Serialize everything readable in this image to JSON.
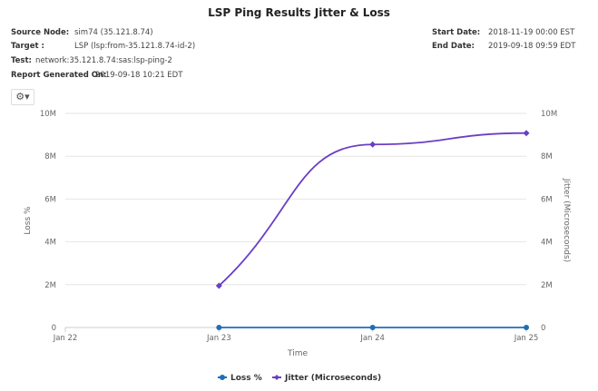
{
  "header": {
    "title": "LSP Ping Results Jitter & Loss",
    "source_node_label": "Source Node:",
    "source_node": "sim74 (35.121.8.74)",
    "target_label": "Target :",
    "target": "LSP (lsp:from-35.121.8.74-id-2)",
    "test_label": "Test:",
    "test": "network:35.121.8.74:sas:lsp-ping-2",
    "generated_label": "Report Generated On:",
    "generated": "2019-09-18 10:21 EDT",
    "start_label": "Start Date:",
    "start": "2018-11-19 00:00 EST",
    "end_label": "End Date:",
    "end": "2019-09-18 09:59 EDT"
  },
  "toolbar": {
    "settings_icon": "gear-icon",
    "settings_glyph": "⚙▾"
  },
  "chart_data": {
    "type": "line",
    "xlabel": "Time",
    "ylabel_left": "Loss %",
    "ylabel_right": "Jitter (Microseconds)",
    "x_ticks": [
      "Jan 22",
      "Jan 23",
      "Jan 24",
      "Jan 25"
    ],
    "y_ticks": [
      "0",
      "2M",
      "4M",
      "6M",
      "8M",
      "10M"
    ],
    "ylim": [
      0,
      10000000
    ],
    "grid": true,
    "legend_position": "bottom",
    "series": [
      {
        "name": "Loss %",
        "color": "#1f6fb4",
        "x": [
          "Jan 23",
          "Jan 24",
          "Jan 25"
        ],
        "values": [
          0,
          0,
          0
        ]
      },
      {
        "name": "Jitter (Microseconds)",
        "color": "#6a3fc4",
        "x": [
          "Jan 23",
          "Jan 24",
          "Jan 25"
        ],
        "values": [
          1950000,
          8550000,
          9080000
        ]
      }
    ]
  }
}
